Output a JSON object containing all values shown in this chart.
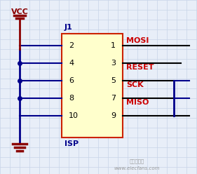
{
  "bg_color": "#e8eef8",
  "grid_color": "#c8d4e8",
  "vcc_color": "#8b0000",
  "blue_wire_color": "#00008b",
  "black_wire_color": "#000000",
  "red_label_color": "#cc0000",
  "blue_label_color": "#00008b",
  "box_fill": "#ffffcc",
  "box_edge": "#cc2200",
  "pin_numbers_left": [
    "2",
    "4",
    "6",
    "8",
    "10"
  ],
  "pin_numbers_right": [
    "1",
    "3",
    "5",
    "7",
    "9"
  ],
  "right_labels": [
    "MOSI",
    "RESET",
    "SCK",
    "MISO"
  ],
  "label_J1": "J1",
  "label_ISP": "ISP",
  "label_VCC": "VCC",
  "watermark": "www.elecfans.com",
  "elecfans_text": "电子发烧友"
}
